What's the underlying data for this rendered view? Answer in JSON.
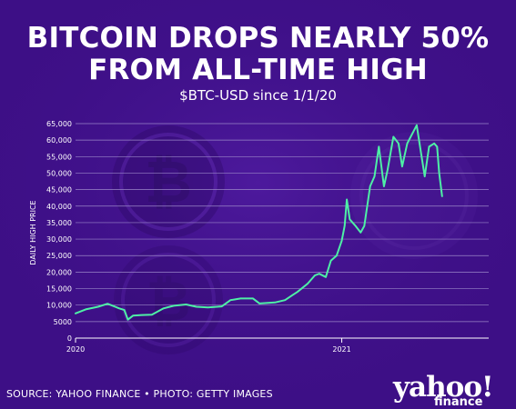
{
  "header": {
    "title_line1": "BITCOIN DROPS NEARLY 50%",
    "title_line2": "FROM ALL-TIME HIGH",
    "subtitle": "$BTC-USD since 1/1/20"
  },
  "footer": {
    "source": "SOURCE: YAHOO FINANCE • PHOTO: GETTY IMAGES",
    "logo_text": "yahoo!",
    "logo_sub": "finance"
  },
  "colors": {
    "background": "#3d0f86",
    "line": "#4ef0a6",
    "gridline": "#9a86c8",
    "text": "#ffffff"
  },
  "chart_data": {
    "type": "line",
    "title": "BITCOIN DROPS NEARLY 50% FROM ALL-TIME HIGH",
    "subtitle": "$BTC-USD since 1/1/20",
    "xlabel": "",
    "ylabel": "DAILY HIGH PRICE",
    "xlim": [
      "2020-01-01",
      "2021-07-22"
    ],
    "ylim": [
      0,
      65000
    ],
    "yticks": [
      0,
      5000,
      10000,
      15000,
      20000,
      25000,
      30000,
      35000,
      40000,
      45000,
      50000,
      55000,
      60000,
      65000
    ],
    "ytick_labels": [
      "0",
      "5000",
      "10,000",
      "15,000",
      "20,000",
      "25,000",
      "30,000",
      "35,000",
      "40,000",
      "45,000",
      "50,000",
      "55,000",
      "60,000",
      "65,000"
    ],
    "xticks": [
      "2020-01-01",
      "2021-01-01"
    ],
    "xtick_labels": [
      "2020",
      "2021"
    ],
    "grid": true,
    "legend": "none",
    "series": [
      {
        "x": [
          "2020-01-01",
          "2020-01-15",
          "2020-02-01",
          "2020-02-14",
          "2020-03-01",
          "2020-03-08",
          "2020-03-13",
          "2020-03-20",
          "2020-04-01",
          "2020-04-15",
          "2020-05-01",
          "2020-05-15",
          "2020-06-01",
          "2020-06-15",
          "2020-07-01",
          "2020-07-20",
          "2020-08-01",
          "2020-08-15",
          "2020-09-01",
          "2020-09-10",
          "2020-10-01",
          "2020-10-15",
          "2020-10-25",
          "2020-11-01",
          "2020-11-15",
          "2020-11-25",
          "2020-12-01",
          "2020-12-10",
          "2020-12-17",
          "2020-12-25",
          "2021-01-01",
          "2021-01-05",
          "2021-01-08",
          "2021-01-12",
          "2021-01-20",
          "2021-01-27",
          "2021-02-01",
          "2021-02-09",
          "2021-02-15",
          "2021-02-21",
          "2021-02-28",
          "2021-03-05",
          "2021-03-13",
          "2021-03-20",
          "2021-03-25",
          "2021-04-01",
          "2021-04-14",
          "2021-04-20",
          "2021-04-25",
          "2021-05-01",
          "2021-05-08",
          "2021-05-12",
          "2021-05-15",
          "2021-05-19"
        ],
        "y": [
          7500,
          8700,
          9500,
          10400,
          9000,
          8500,
          5600,
          6800,
          7000,
          7100,
          9000,
          9800,
          10200,
          9500,
          9300,
          9600,
          11500,
          12000,
          12000,
          10500,
          10800,
          11500,
          13000,
          14000,
          16500,
          19000,
          19500,
          18500,
          23500,
          25000,
          29500,
          34000,
          42000,
          36000,
          34000,
          32000,
          34000,
          46000,
          49000,
          58000,
          46000,
          51000,
          61000,
          59000,
          52000,
          59000,
          64500,
          56000,
          49000,
          58000,
          59000,
          58000,
          50000,
          43000
        ]
      }
    ]
  }
}
